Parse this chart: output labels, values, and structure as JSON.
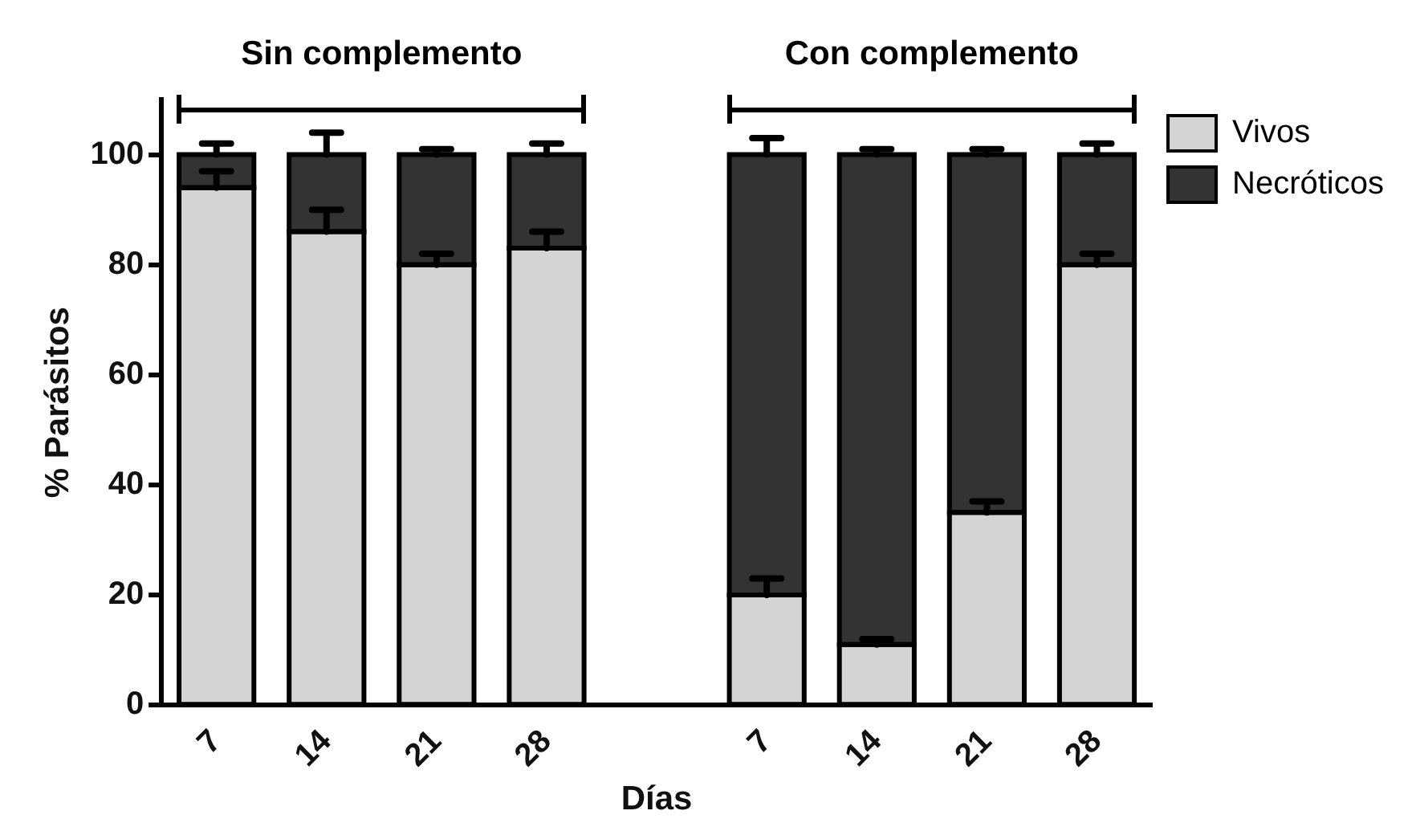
{
  "chart_data": {
    "type": "bar",
    "stacked": true,
    "xlabel": "Días",
    "ylabel": "% Parásitos",
    "categories": [
      "7",
      "14",
      "21",
      "28",
      null,
      "7",
      "14",
      "21",
      "28"
    ],
    "series": [
      {
        "name": "Vivos",
        "color": "#d4d4d4",
        "values": [
          94,
          86,
          80,
          83,
          null,
          20,
          11,
          35,
          80
        ],
        "errors": [
          [
            94,
            97
          ],
          [
            86,
            90
          ],
          [
            80,
            82
          ],
          [
            83,
            86
          ],
          null,
          [
            20,
            23
          ],
          [
            11,
            12
          ],
          [
            35,
            37
          ],
          [
            80,
            82
          ]
        ]
      },
      {
        "name": "Necróticos",
        "color": "#333333",
        "values": [
          6,
          14,
          20,
          17,
          null,
          80,
          89,
          65,
          20
        ],
        "errors": [
          [
            100,
            102
          ],
          [
            100,
            104
          ],
          [
            100,
            101
          ],
          [
            100,
            102
          ],
          null,
          [
            100,
            103
          ],
          [
            100,
            101
          ],
          [
            100,
            101
          ],
          [
            100,
            102
          ]
        ]
      }
    ],
    "ylim": [
      0,
      110
    ],
    "yticks": [
      0,
      20,
      40,
      60,
      80,
      100
    ],
    "grid": false,
    "legend": "top right",
    "annotations": [
      "Sin complemento",
      "Con complemento"
    ]
  }
}
